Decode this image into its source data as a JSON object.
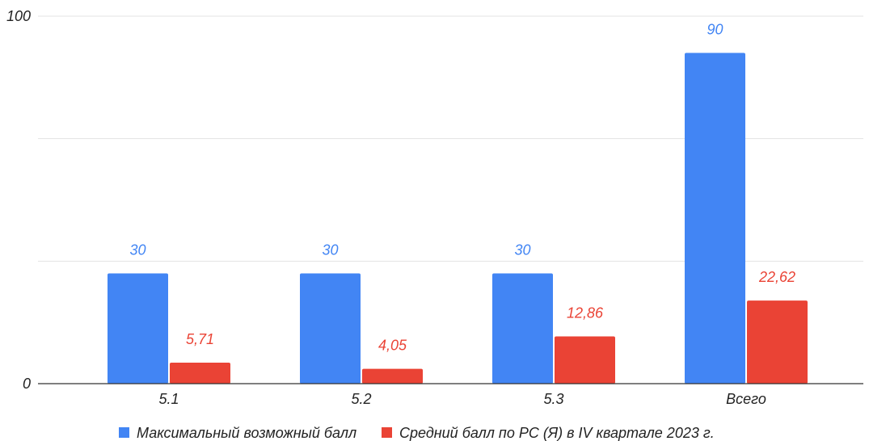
{
  "chart_data": {
    "type": "bar",
    "categories": [
      "5.1",
      "5.2",
      "5.3",
      "Всего"
    ],
    "series": [
      {
        "name": "Максимальный возможный балл",
        "values": [
          30,
          30,
          30,
          90
        ],
        "labels": [
          "30",
          "30",
          "30",
          "90"
        ],
        "color": "#4285f4"
      },
      {
        "name": "Средний балл по РС (Я) в IV квартале 2023 г.",
        "values": [
          5.71,
          4.05,
          12.86,
          22.62
        ],
        "labels": [
          "5,71",
          "4,05",
          "12,86",
          "22,62"
        ],
        "color": "#ea4335"
      }
    ],
    "ylim": [
      0,
      100
    ],
    "y_tick_labels": [
      "0",
      "100"
    ],
    "y_gridlines": [
      0,
      33.33,
      66.67,
      100
    ],
    "grid": true,
    "legend_position": "bottom-center",
    "title": "",
    "xlabel": "",
    "ylabel": ""
  }
}
